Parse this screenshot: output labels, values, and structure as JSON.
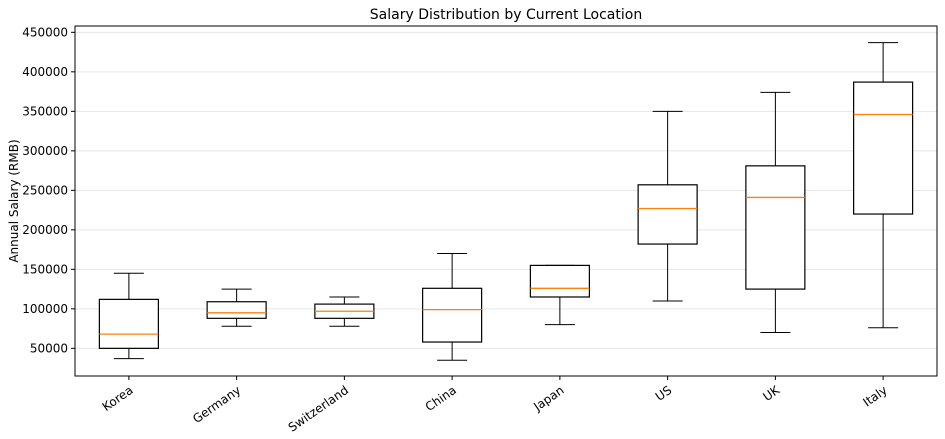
{
  "chart_data": {
    "type": "boxplot",
    "title": "Salary Distribution by Current Location",
    "xlabel": "",
    "ylabel": "Annual Salary (RMB)",
    "ylim": [
      15000,
      458000
    ],
    "yticks": [
      50000,
      100000,
      150000,
      200000,
      250000,
      300000,
      350000,
      400000,
      450000
    ],
    "grid": "horizontal",
    "categories": [
      "Korea",
      "Germany",
      "Switzerland",
      "China",
      "Japan",
      "US",
      "UK",
      "Italy"
    ],
    "boxes": [
      {
        "label": "Korea",
        "whisker_low": 37000,
        "q1": 50000,
        "median": 68000,
        "q3": 112000,
        "whisker_high": 145000
      },
      {
        "label": "Germany",
        "whisker_low": 78000,
        "q1": 88000,
        "median": 95000,
        "q3": 109000,
        "whisker_high": 125000
      },
      {
        "label": "Switzerland",
        "whisker_low": 78000,
        "q1": 88000,
        "median": 97000,
        "q3": 106000,
        "whisker_high": 115000
      },
      {
        "label": "China",
        "whisker_low": 35000,
        "q1": 58000,
        "median": 99000,
        "q3": 126000,
        "whisker_high": 170000
      },
      {
        "label": "Japan",
        "whisker_low": 80000,
        "q1": 115000,
        "median": 126000,
        "q3": 155000,
        "whisker_high": 155000
      },
      {
        "label": "US",
        "whisker_low": 110000,
        "q1": 182000,
        "median": 227000,
        "q3": 257000,
        "whisker_high": 350000
      },
      {
        "label": "UK",
        "whisker_low": 70000,
        "q1": 125000,
        "median": 241000,
        "q3": 281000,
        "whisker_high": 374000
      },
      {
        "label": "Italy",
        "whisker_low": 76000,
        "q1": 220000,
        "median": 346000,
        "q3": 387000,
        "whisker_high": 437000
      }
    ],
    "colors": {
      "box": "#000000",
      "median": "#ff7f0e",
      "grid": "#e6e6e6"
    }
  }
}
